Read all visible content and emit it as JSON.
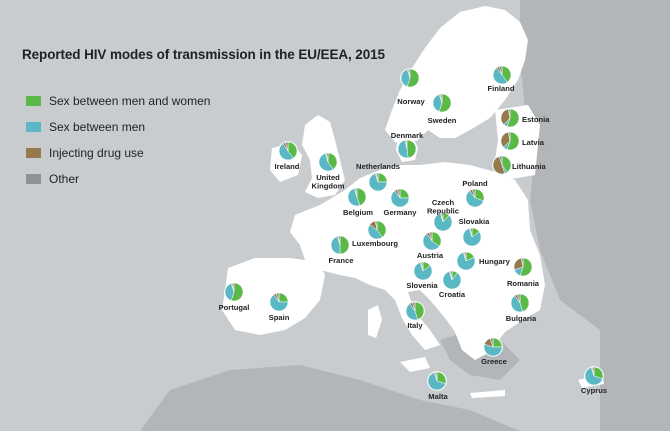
{
  "title": "Reported HIV modes of transmission in the EU/EEA, 2015",
  "colors": {
    "hetero": "#5ab947",
    "msm": "#5ab8c4",
    "idu": "#957a4c",
    "other": "#8f9193",
    "sea": "#c9cccf",
    "land": "#ffffff",
    "land_outside": "#b3b6b9"
  },
  "legend": [
    {
      "label": "Sex between men and women",
      "key": "hetero"
    },
    {
      "label": "Sex between men",
      "key": "msm"
    },
    {
      "label": "Injecting drug use",
      "key": "idu"
    },
    {
      "label": "Other",
      "key": "other"
    }
  ],
  "countries": [
    {
      "name": "Norway",
      "shares": [
        0.55,
        0.4,
        0.02,
        0.03
      ]
    },
    {
      "name": "Finland",
      "shares": [
        0.4,
        0.5,
        0.05,
        0.05
      ]
    },
    {
      "name": "Sweden",
      "shares": [
        0.55,
        0.4,
        0.02,
        0.03
      ]
    },
    {
      "name": "Estonia",
      "shares": [
        0.55,
        0.07,
        0.35,
        0.03
      ]
    },
    {
      "name": "Latvia",
      "shares": [
        0.55,
        0.08,
        0.34,
        0.03
      ]
    },
    {
      "name": "Denmark",
      "shares": [
        0.48,
        0.48,
        0.02,
        0.02
      ]
    },
    {
      "name": "Lithuania",
      "shares": [
        0.4,
        0.05,
        0.5,
        0.05
      ]
    },
    {
      "name": "Ireland",
      "shares": [
        0.4,
        0.5,
        0.05,
        0.05
      ]
    },
    {
      "name": "United Kingdom",
      "shares": [
        0.4,
        0.55,
        0.02,
        0.03
      ]
    },
    {
      "name": "Netherlands",
      "shares": [
        0.25,
        0.7,
        0.02,
        0.03
      ]
    },
    {
      "name": "Poland",
      "shares": [
        0.3,
        0.6,
        0.05,
        0.05
      ]
    },
    {
      "name": "Belgium",
      "shares": [
        0.45,
        0.5,
        0.02,
        0.03
      ]
    },
    {
      "name": "Germany",
      "shares": [
        0.25,
        0.65,
        0.05,
        0.05
      ]
    },
    {
      "name": "Czech Republic",
      "shares": [
        0.12,
        0.83,
        0.02,
        0.03
      ]
    },
    {
      "name": "Slovakia",
      "shares": [
        0.15,
        0.8,
        0.02,
        0.03
      ]
    },
    {
      "name": "Luxembourg",
      "shares": [
        0.4,
        0.45,
        0.12,
        0.03
      ]
    },
    {
      "name": "France",
      "shares": [
        0.5,
        0.45,
        0.02,
        0.03
      ]
    },
    {
      "name": "Austria",
      "shares": [
        0.35,
        0.55,
        0.05,
        0.05
      ]
    },
    {
      "name": "Hungary",
      "shares": [
        0.18,
        0.77,
        0.02,
        0.03
      ]
    },
    {
      "name": "Romania",
      "shares": [
        0.55,
        0.15,
        0.27,
        0.03
      ]
    },
    {
      "name": "Slovenia",
      "shares": [
        0.15,
        0.8,
        0.02,
        0.03
      ]
    },
    {
      "name": "Croatia",
      "shares": [
        0.1,
        0.85,
        0.02,
        0.03
      ]
    },
    {
      "name": "Portugal",
      "shares": [
        0.55,
        0.4,
        0.02,
        0.03
      ]
    },
    {
      "name": "Spain",
      "shares": [
        0.25,
        0.65,
        0.05,
        0.05
      ]
    },
    {
      "name": "Bulgaria",
      "shares": [
        0.45,
        0.45,
        0.05,
        0.05
      ]
    },
    {
      "name": "Italy",
      "shares": [
        0.45,
        0.45,
        0.05,
        0.05
      ]
    },
    {
      "name": "Greece",
      "shares": [
        0.25,
        0.55,
        0.15,
        0.05
      ]
    },
    {
      "name": "Malta",
      "shares": [
        0.3,
        0.65,
        0.02,
        0.03
      ]
    },
    {
      "name": "Cyprus",
      "shares": [
        0.3,
        0.65,
        0.02,
        0.03
      ]
    }
  ]
}
